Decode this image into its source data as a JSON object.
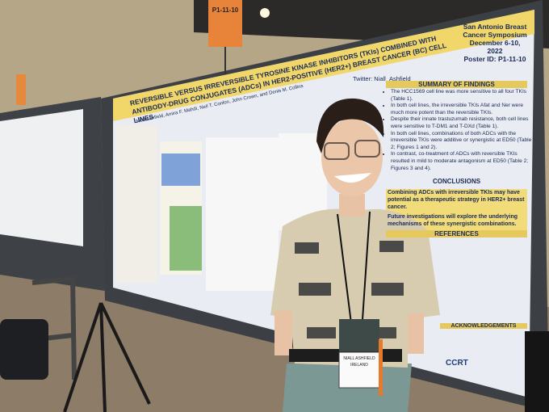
{
  "sign": {
    "label": "P1-11-10"
  },
  "poster": {
    "title": "REVERSIBLE VERSUS IRREVERSIBLE TYROSINE KINASE INHIBITORS (TKIs) COMBINED WITH ANTIBODY-DRUG CONJUGATES (ADCs) IN HER2-POSITIVE (HER2+) BREAST CANCER (BC) CELL LINES",
    "authors": "Niall Ashfield, Amira F. Mahdi, Neil T. Conlon, John Crown, and Denis M. Collins",
    "conference": {
      "name": "San Antonio Breast Cancer Symposium",
      "dates": "December 6-10, 2022",
      "poster_id": "Poster ID: P1-11-10"
    },
    "twitter": "Twitter: Niall_Ashfield",
    "summary": {
      "heading": "SUMMARY OF FINDINGS",
      "items": [
        "The HCC1569 cell line was more sensitive to all four TKIs (Table 1).",
        "In both cell lines, the irreversible TKIs Afat and Ner were much more potent than the reversible TKIs.",
        "Despite their innate trastuzumab resistance, both cell lines were sensitive to T-DM1 and T-DXd (Table 1).",
        "In both cell lines, combinations of both ADCs with the irreversible TKIs were additive or synergistic at ED50 (Table 2; Figures 1 and 2).",
        "In contrast, co-treatment of ADCs with reversible TKIs resulted in mild to moderate antagonism at ED50 (Table 2; Figures 3 and 4)."
      ]
    },
    "conclusions": {
      "heading": "CONCLUSIONS",
      "items": [
        "Combining ADCs with irreversible TKIs may have potential as a therapeutic strategy in HER2+ breast cancer.",
        "Future investigations will explore the underlying mechanisms of these synergistic combinations."
      ]
    },
    "references": {
      "heading": "REFERENCES"
    },
    "acknowledgements": {
      "heading": "ACKNOWLEDGEMENTS"
    },
    "logo": "CCRT"
  },
  "badge": {
    "name": "NIALL ASHFIELD",
    "country": "IRELAND"
  }
}
